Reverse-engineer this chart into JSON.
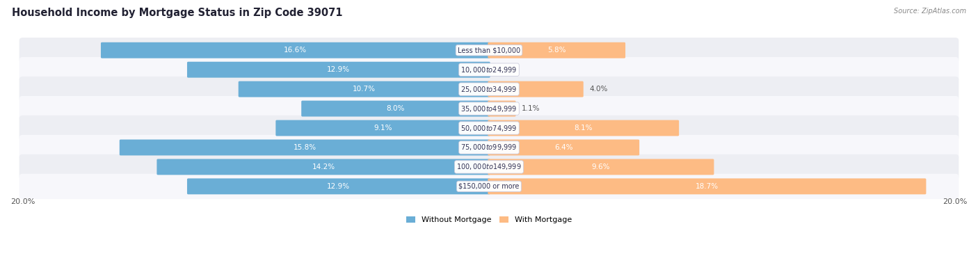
{
  "title": "Household Income by Mortgage Status in Zip Code 39071",
  "source": "Source: ZipAtlas.com",
  "categories": [
    "Less than $10,000",
    "$10,000 to $24,999",
    "$25,000 to $34,999",
    "$35,000 to $49,999",
    "$50,000 to $74,999",
    "$75,000 to $99,999",
    "$100,000 to $149,999",
    "$150,000 or more"
  ],
  "without_mortgage": [
    16.6,
    12.9,
    10.7,
    8.0,
    9.1,
    15.8,
    14.2,
    12.9
  ],
  "with_mortgage": [
    5.8,
    0.0,
    4.0,
    1.1,
    8.1,
    6.4,
    9.6,
    18.7
  ],
  "color_without": "#6aaed6",
  "color_with": "#fdbb84",
  "bg_row_even": "#edeef3",
  "bg_row_odd": "#f7f7fb",
  "title_fontsize": 10.5,
  "bar_label_fontsize": 7.5,
  "category_fontsize": 7.0,
  "axis_label_fontsize": 8,
  "max_val": 20.0,
  "legend_label_without": "Without Mortgage",
  "legend_label_with": "With Mortgage"
}
